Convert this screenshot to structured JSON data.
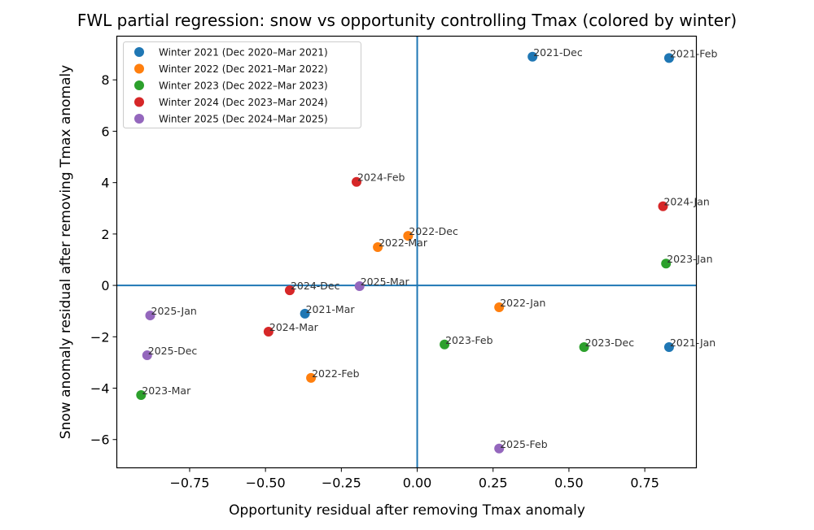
{
  "chart_data": {
    "type": "scatter",
    "title": "FWL partial regression: snow vs opportunity controlling Tmax (colored by winter)",
    "xlabel": "Opportunity residual after removing Tmax anomaly",
    "ylabel": "Snow anomaly residual after removing Tmax anomaly",
    "xlim": [
      -0.99,
      0.92
    ],
    "ylim": [
      -7.1,
      9.7
    ],
    "xticks": [
      -0.75,
      -0.5,
      -0.25,
      0.0,
      0.25,
      0.5,
      0.75
    ],
    "xtick_labels": [
      "−0.75",
      "−0.50",
      "−0.25",
      "0.00",
      "0.25",
      "0.50",
      "0.75"
    ],
    "yticks": [
      -6,
      -4,
      -2,
      0,
      2,
      4,
      6,
      8
    ],
    "ytick_labels": [
      "−6",
      "−4",
      "−2",
      "0",
      "2",
      "4",
      "6",
      "8"
    ],
    "grid": false,
    "reference_lines": {
      "x": 0,
      "y": 0,
      "color": "#1f77b4"
    },
    "legend_position": "top-left",
    "series": [
      {
        "name": "Winter 2021 (Dec 2020–Mar 2021)",
        "color": "#1f77b4",
        "points": [
          {
            "label": "2021-Dec",
            "x": 0.38,
            "y": 8.9
          },
          {
            "label": "2021-Feb",
            "x": 0.83,
            "y": 8.85
          },
          {
            "label": "2021-Mar",
            "x": -0.37,
            "y": -1.1
          },
          {
            "label": "2021-Jan",
            "x": 0.83,
            "y": -2.4
          }
        ]
      },
      {
        "name": "Winter 2022 (Dec 2021–Mar 2022)",
        "color": "#ff7f0e",
        "points": [
          {
            "label": "2022-Dec",
            "x": -0.03,
            "y": 1.93
          },
          {
            "label": "2022-Mar",
            "x": -0.13,
            "y": 1.49
          },
          {
            "label": "2022-Jan",
            "x": 0.27,
            "y": -0.85
          },
          {
            "label": "2022-Feb",
            "x": -0.35,
            "y": -3.6
          }
        ]
      },
      {
        "name": "Winter 2023 (Dec 2022–Mar 2023)",
        "color": "#2ca02c",
        "points": [
          {
            "label": "2023-Jan",
            "x": 0.82,
            "y": 0.85
          },
          {
            "label": "2023-Feb",
            "x": 0.09,
            "y": -2.3
          },
          {
            "label": "2023-Dec",
            "x": 0.55,
            "y": -2.4
          },
          {
            "label": "2023-Mar",
            "x": -0.91,
            "y": -4.27
          }
        ]
      },
      {
        "name": "Winter 2024 (Dec 2023–Mar 2024)",
        "color": "#d62728",
        "points": [
          {
            "label": "2024-Feb",
            "x": -0.2,
            "y": 4.03
          },
          {
            "label": "2024-Jan",
            "x": 0.81,
            "y": 3.08
          },
          {
            "label": "2024-Dec",
            "x": -0.42,
            "y": -0.19
          },
          {
            "label": "2024-Mar",
            "x": -0.49,
            "y": -1.8
          }
        ]
      },
      {
        "name": "Winter 2025 (Dec 2024–Mar 2025)",
        "color": "#9467bd",
        "points": [
          {
            "label": "2025-Mar",
            "x": -0.19,
            "y": -0.03
          },
          {
            "label": "2025-Jan",
            "x": -0.88,
            "y": -1.17
          },
          {
            "label": "2025-Dec",
            "x": -0.89,
            "y": -2.72
          },
          {
            "label": "2025-Feb",
            "x": 0.27,
            "y": -6.35
          }
        ]
      }
    ]
  }
}
